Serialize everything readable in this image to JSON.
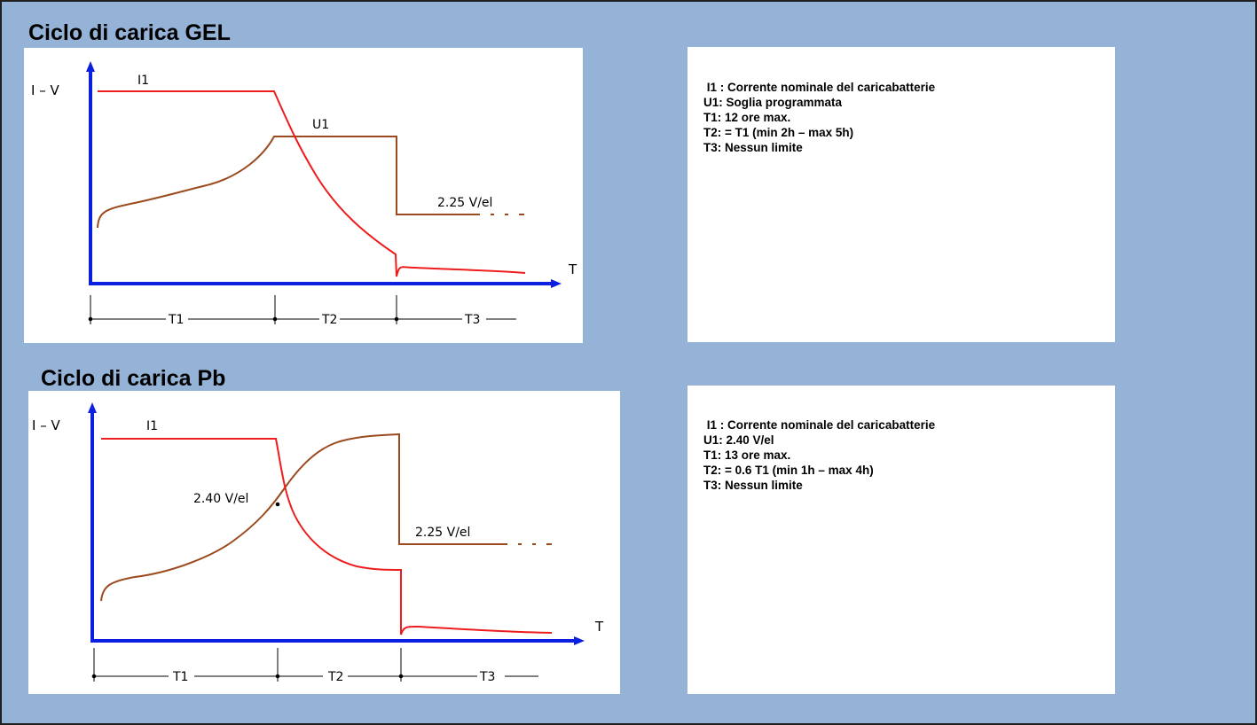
{
  "sections": [
    {
      "title": "Ciclo di carica GEL",
      "diagram": {
        "axis_y_label": "I – V",
        "axis_x_label": "T",
        "current_label": "I1",
        "voltage_label": "U1",
        "float_label": "2.25 V/el",
        "phase_labels": [
          "T1",
          "T2",
          "T3"
        ]
      },
      "notes": [
        " I1 : Corrente nominale del caricabatterie",
        "U1: Soglia programmata",
        "T1: 12 ore max.",
        "T2: = T1 (min 2h – max 5h)",
        "T3: Nessun limite"
      ]
    },
    {
      "title": "Ciclo di carica Pb",
      "diagram": {
        "axis_y_label": "I – V",
        "axis_x_label": "T",
        "current_label": "I1",
        "voltage_label": "2.40 V/el",
        "float_label": "2.25 V/el",
        "phase_labels": [
          "T1",
          "T2",
          "T3"
        ]
      },
      "notes": [
        " I1 : Corrente nominale del caricabatterie",
        "U1: 2.40 V/el",
        "T1: 13 ore max.",
        "T2: = 0.6 T1 (min 1h – max 4h)",
        "T3: Nessun limite"
      ]
    }
  ],
  "colors": {
    "background": "#95b3d7",
    "axis": "#0b1fe0",
    "current_curve": "#ee1c1c",
    "voltage_curve": "#9b4a1e"
  }
}
